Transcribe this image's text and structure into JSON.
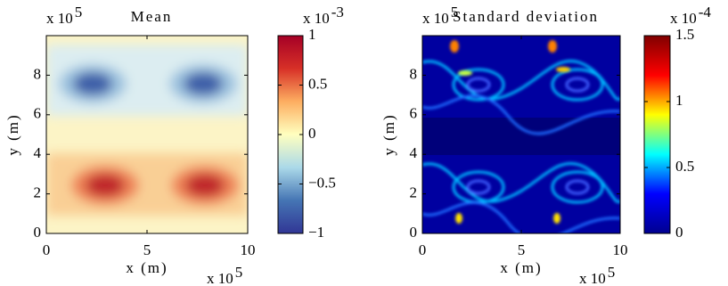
{
  "chart_data": [
    {
      "type": "heatmap",
      "title": "Mean",
      "xlabel": "x (m)",
      "ylabel": "y (m)",
      "xlim": [
        0,
        10
      ],
      "xticks": [
        0,
        5,
        10
      ],
      "ylim": [
        0,
        10
      ],
      "yticks": [
        0,
        2,
        4,
        6,
        8
      ],
      "x_scale": {
        "base": "x 10",
        "exponent": "5"
      },
      "y_scale": {
        "base": "x 10",
        "exponent": "5"
      },
      "colormap": "diverging",
      "clim": [
        -1,
        1
      ],
      "cticks": [
        {
          "value": -1,
          "label": "−1"
        },
        {
          "value": -0.5,
          "label": "−0.5"
        },
        0,
        0.5,
        1
      ],
      "c_scale": {
        "base": "x 10",
        "exponent": "-3"
      }
    },
    {
      "type": "heatmap",
      "title": "Standard deviation",
      "xlabel": "x (m)",
      "ylabel": "y (m)",
      "xlim": [
        0,
        10
      ],
      "xticks": [
        0,
        5,
        10
      ],
      "ylim": [
        0,
        10
      ],
      "yticks": [
        0,
        2,
        4,
        6,
        8
      ],
      "x_scale": {
        "base": "x 10",
        "exponent": "5"
      },
      "y_scale": {
        "base": "x 10",
        "exponent": "5"
      },
      "colormap": "jet",
      "clim": [
        0,
        1.5
      ],
      "cticks": [
        0,
        0.5,
        1,
        1.5
      ],
      "c_scale": {
        "base": "x 10",
        "exponent": "-4"
      }
    }
  ]
}
